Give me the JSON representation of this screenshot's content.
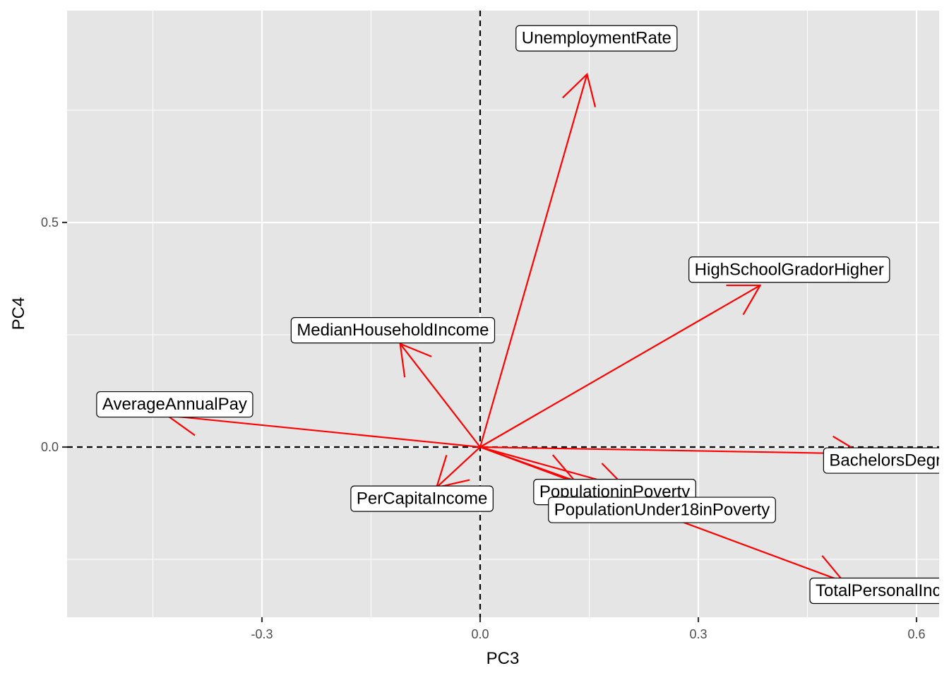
{
  "chart_data": {
    "type": "scatter",
    "subtype": "biplot-loadings",
    "title": "",
    "xlabel": "PC3",
    "ylabel": "PC4",
    "xlim": [
      -0.57,
      0.63
    ],
    "ylim": [
      -0.38,
      0.97
    ],
    "xticks": [
      -0.3,
      0.0,
      0.3,
      0.6
    ],
    "xtick_labels": [
      "-0.3",
      "0.0",
      "0.3",
      "0.6"
    ],
    "yticks": [
      0.0,
      0.5
    ],
    "ytick_labels": [
      "0.0",
      "0.5"
    ],
    "grid": true,
    "reference_lines": [
      {
        "axis": "x",
        "value": 0,
        "style": "dashed",
        "color": "#000000"
      },
      {
        "axis": "y",
        "value": 0,
        "style": "dashed",
        "color": "#000000"
      }
    ],
    "arrow_color": "#ff0000",
    "panel_color": "#e5e5e5",
    "vectors": [
      {
        "label": "UnemploymentRate",
        "x": 0.147,
        "y": 0.83,
        "label_x": 0.16,
        "label_y": 0.91
      },
      {
        "label": "HighSchoolGradorHigher",
        "x": 0.385,
        "y": 0.36,
        "label_x": 0.425,
        "label_y": 0.395
      },
      {
        "label": "MedianHouseholdIncome",
        "x": -0.11,
        "y": 0.23,
        "label_x": -0.12,
        "label_y": 0.26
      },
      {
        "label": "AverageAnnualPay",
        "x": -0.43,
        "y": 0.07,
        "label_x": -0.42,
        "label_y": 0.095
      },
      {
        "label": "BachelorsDegree",
        "x": 0.525,
        "y": -0.015,
        "label_x": 0.57,
        "label_y": -0.03
      },
      {
        "label": "PerCapitaIncome",
        "x": -0.06,
        "y": -0.09,
        "label_x": -0.08,
        "label_y": -0.115
      },
      {
        "label": "PopulationinPoverty",
        "x": 0.13,
        "y": -0.075,
        "label_x": 0.185,
        "label_y": -0.1
      },
      {
        "label": "PopulationUnder18inPoverty",
        "x": 0.2,
        "y": -0.09,
        "label_x": 0.25,
        "label_y": -0.14
      },
      {
        "label": "TotalPersonalIncome",
        "x": 0.5,
        "y": -0.3,
        "label_x": 0.57,
        "label_y": -0.32
      }
    ]
  }
}
